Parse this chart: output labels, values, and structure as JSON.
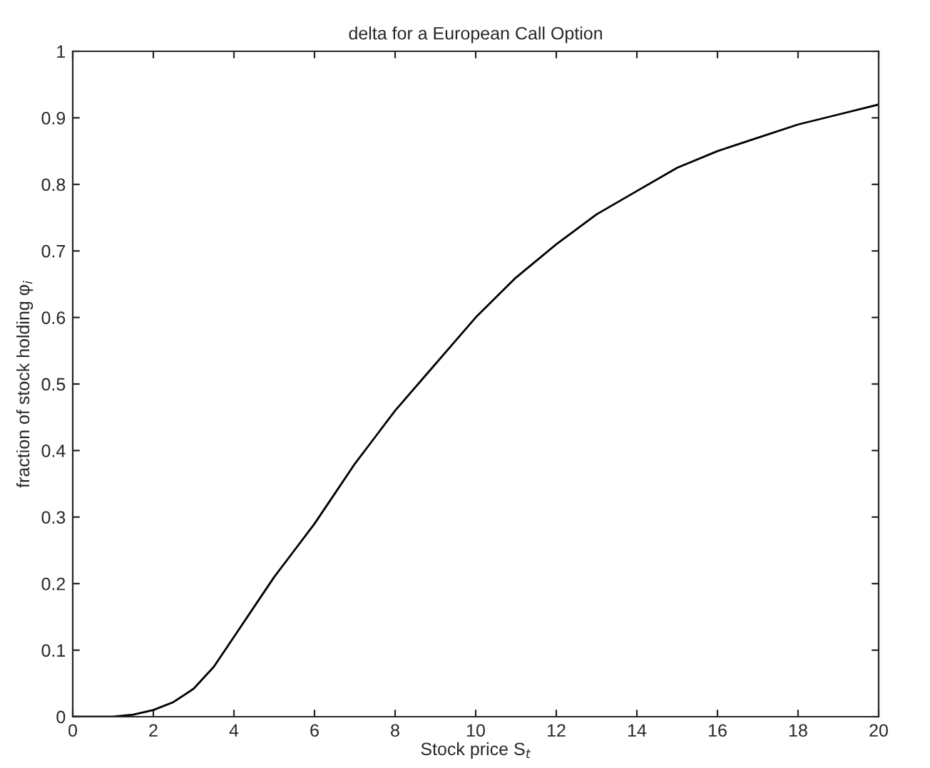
{
  "chart_data": {
    "type": "line",
    "title": "delta for a European Call Option",
    "xlabel": "Stock price S$_{t}$",
    "ylabel": "fraction of stock holding φ$_{i}$",
    "x": [
      0,
      0.5,
      1,
      1.5,
      2,
      2.5,
      3,
      3.5,
      4,
      4.5,
      5,
      5.5,
      6,
      6.5,
      7,
      7.5,
      8,
      9,
      10,
      11,
      12,
      13,
      14,
      15,
      16,
      17,
      18,
      19,
      20
    ],
    "series": [
      {
        "color": "#000000",
        "values": [
          0,
          0,
          0,
          0.003,
          0.01,
          0.022,
          0.042,
          0.075,
          0.12,
          0.165,
          0.21,
          0.25,
          0.29,
          0.335,
          0.38,
          0.42,
          0.46,
          0.53,
          0.6,
          0.66,
          0.71,
          0.755,
          0.79,
          0.825,
          0.85,
          0.87,
          0.89,
          0.905,
          0.92
        ]
      }
    ],
    "xlim": [
      0,
      20
    ],
    "xticks": [
      0,
      2,
      4,
      6,
      8,
      10,
      12,
      14,
      16,
      18,
      20
    ],
    "ylim": [
      0,
      1
    ],
    "yticks": [
      0,
      0.1,
      0.2,
      0.3,
      0.4,
      0.5,
      0.6,
      0.7,
      0.8,
      0.9,
      1
    ],
    "grid": false,
    "marker": "none",
    "line_style": "solid"
  }
}
